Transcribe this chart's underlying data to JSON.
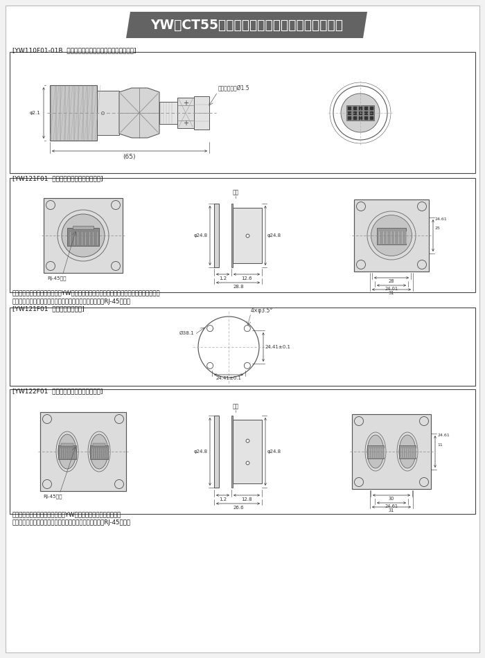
{
  "title": "YW（CT55）系列耐环境高速网络圆形电连接器",
  "title_bg": "#666666",
  "title_color": "#ffffff",
  "background": "#ffffff",
  "page_bg": "#f2f2f2",
  "sec1_label": "[YW110F01-01B  直式插头（带密封电缆入口气密封接口）]",
  "sec2_label": "[YW121F01  单卡口连接方盘安装转接插座]",
  "sec3_label": "[YW121F01  推荐面板开孔尺寸]",
  "sec4_label": "[YW122F01  双卡口连接方盘安装转接插座]",
  "note1": "说明：该插座右端（图示）连接YW系列插头或水晶头线缆组件，左端连接水晶头线缆组件。",
  "warn1": "警告：该插座严禁与未压线的水晶头对插，以防损坏插座中RJ-45部件！",
  "note2": "说明：该插座两端可以各连接一个YW系列插头或水晶头线缆组件。",
  "warn2": "警告：该插座严禁与未压线的水晶头对插，以防损坏插座中RJ-45部件！",
  "rj45": "RJ-45零件",
  "jiaodian": "胶垫",
  "note_cable": "适配电缆直径Ø1.5"
}
